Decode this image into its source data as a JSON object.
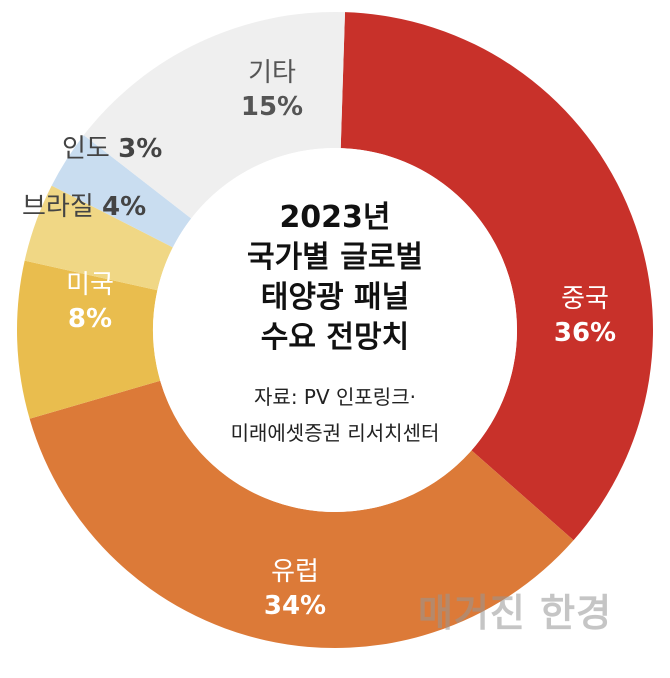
{
  "chart_data": {
    "type": "pie",
    "style": "donut",
    "title_lines": [
      "2023년",
      "국가별 글로벌",
      "태양광 패널",
      "수요 전망치"
    ],
    "source_lines": [
      "자료: PV 인포링크·",
      "미래에셋증권 리서치센터"
    ],
    "slices": [
      {
        "label": "중국",
        "value": 36,
        "display": "36%",
        "color": "#c8312a"
      },
      {
        "label": "유럽",
        "value": 34,
        "display": "34%",
        "color": "#dc7a38"
      },
      {
        "label": "미국",
        "value": 8,
        "display": "8%",
        "color": "#e9bd4e"
      },
      {
        "label": "브라질",
        "value": 4,
        "display": "4%",
        "color": "#f0d785"
      },
      {
        "label": "인도",
        "value": 3,
        "display": "3%",
        "color": "#c9ddf0"
      },
      {
        "label": "기타",
        "value": 15,
        "display": "15%",
        "color": "#efefef"
      }
    ]
  },
  "watermark": "매거진 한경"
}
